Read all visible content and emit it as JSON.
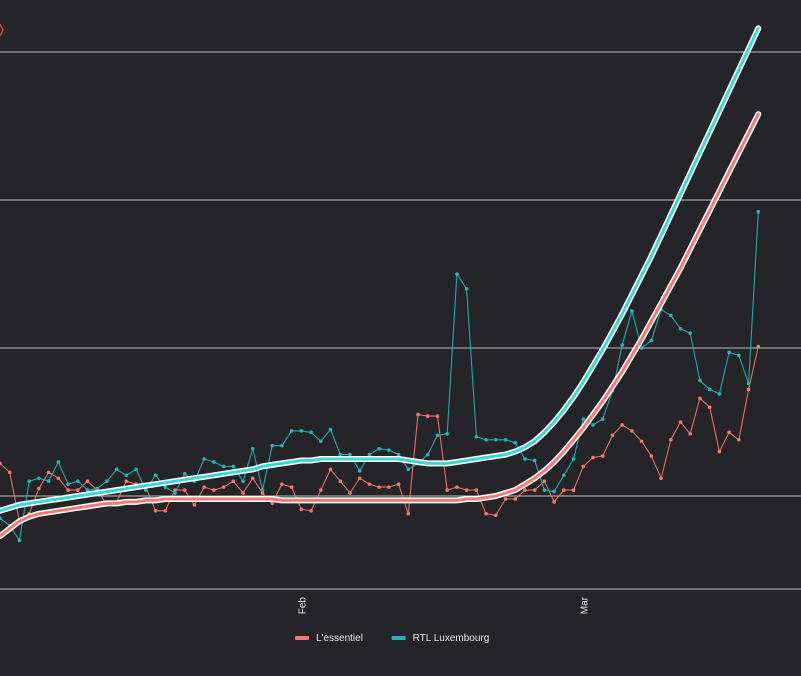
{
  "colors": {
    "background": "#252429",
    "grid": "#bdbdbd",
    "lessentiel": "#f8766d",
    "rtl": "#1fb8bd",
    "lessentiel_smooth": "#f27a74",
    "rtl_smooth": "#3fd6d8",
    "smooth_halo": "#ffffff",
    "text": "#e8e8e8",
    "marker_top_left": "#d84040"
  },
  "chart_data": {
    "type": "line",
    "x_tick_labels": [
      "Feb",
      "Mar"
    ],
    "x_tick_day_index": [
      31,
      60
    ],
    "day_range": [
      0,
      79
    ],
    "ylim": [
      -0.3,
      3.3
    ],
    "y_gridlines": [
      0,
      1,
      2,
      3
    ],
    "y_tick_labels_visible": false,
    "grid": true,
    "legend_position": "bottom",
    "series": [
      {
        "name": "L'essentiel",
        "color_key": "lessentiel",
        "values": [
          0.22,
          0.16,
          -0.17,
          -0.12,
          0.05,
          0.16,
          0.12,
          0.04,
          0.04,
          0.1,
          0.04,
          -0.06,
          -0.04,
          0.1,
          0.08,
          0.06,
          -0.1,
          -0.1,
          0.04,
          0.04,
          -0.06,
          0.06,
          0.04,
          0.06,
          0.1,
          0.02,
          0.12,
          0.02,
          -0.05,
          0.08,
          0.06,
          -0.09,
          -0.1,
          0.04,
          0.18,
          0.1,
          0.02,
          0.12,
          0.08,
          0.06,
          0.06,
          0.08,
          -0.12,
          0.55,
          0.54,
          0.54,
          0.04,
          0.06,
          0.04,
          0.04,
          -0.12,
          -0.13,
          -0.02,
          -0.02,
          0.04,
          0.04,
          0.1,
          -0.04,
          0.04,
          0.04,
          0.2,
          0.26,
          0.27,
          0.41,
          0.48,
          0.44,
          0.37,
          0.27,
          0.12,
          0.38,
          0.5,
          0.42,
          0.66,
          0.6,
          0.3,
          0.43,
          0.38,
          0.72,
          1.01
        ]
      },
      {
        "name": "RTL Luxembourg",
        "color_key": "rtl",
        "values": [
          -0.15,
          -0.2,
          -0.3,
          0.1,
          0.12,
          0.1,
          0.23,
          0.08,
          0.1,
          0.04,
          0.05,
          0.1,
          0.18,
          0.14,
          0.18,
          0.04,
          0.14,
          0.06,
          0.02,
          0.15,
          0.1,
          0.25,
          0.23,
          0.2,
          0.2,
          0.1,
          0.32,
          0.04,
          0.34,
          0.34,
          0.44,
          0.44,
          0.43,
          0.37,
          0.45,
          0.28,
          0.28,
          0.17,
          0.28,
          0.32,
          0.31,
          0.28,
          0.18,
          0.22,
          0.28,
          0.41,
          0.42,
          1.5,
          1.4,
          0.4,
          0.38,
          0.38,
          0.38,
          0.36,
          0.25,
          0.24,
          0.04,
          0.03,
          0.14,
          0.25,
          0.52,
          0.48,
          0.52,
          0.71,
          1.02,
          1.25,
          1.0,
          1.05,
          1.26,
          1.22,
          1.13,
          1.1,
          0.78,
          0.72,
          0.69,
          0.97,
          0.95,
          0.76,
          1.92
        ]
      },
      {
        "name": "L'essentiel smooth",
        "color_key": "lessentiel_smooth",
        "values": [
          -0.27,
          -0.22,
          -0.17,
          -0.14,
          -0.12,
          -0.11,
          -0.1,
          -0.09,
          -0.08,
          -0.07,
          -0.06,
          -0.05,
          -0.05,
          -0.04,
          -0.04,
          -0.03,
          -0.03,
          -0.02,
          -0.02,
          -0.02,
          -0.02,
          -0.02,
          -0.02,
          -0.02,
          -0.02,
          -0.02,
          -0.02,
          -0.02,
          -0.02,
          -0.03,
          -0.03,
          -0.03,
          -0.03,
          -0.03,
          -0.03,
          -0.03,
          -0.03,
          -0.03,
          -0.03,
          -0.03,
          -0.03,
          -0.03,
          -0.03,
          -0.03,
          -0.03,
          -0.03,
          -0.03,
          -0.03,
          -0.02,
          -0.02,
          -0.01,
          0.0,
          0.02,
          0.04,
          0.08,
          0.12,
          0.17,
          0.23,
          0.3,
          0.38,
          0.46,
          0.55,
          0.64,
          0.74,
          0.84,
          0.95,
          1.06,
          1.18,
          1.3,
          1.42,
          1.54,
          1.67,
          1.8,
          1.93,
          2.06,
          2.19,
          2.32,
          2.45,
          2.58
        ]
      },
      {
        "name": "RTL Luxembourg smooth",
        "color_key": "rtl_smooth",
        "values": [
          -0.1,
          -0.08,
          -0.06,
          -0.05,
          -0.04,
          -0.03,
          -0.02,
          -0.01,
          0.0,
          0.01,
          0.02,
          0.03,
          0.04,
          0.05,
          0.06,
          0.07,
          0.08,
          0.09,
          0.1,
          0.11,
          0.12,
          0.13,
          0.14,
          0.15,
          0.16,
          0.17,
          0.18,
          0.2,
          0.21,
          0.22,
          0.23,
          0.24,
          0.24,
          0.25,
          0.25,
          0.25,
          0.25,
          0.25,
          0.25,
          0.25,
          0.25,
          0.25,
          0.24,
          0.23,
          0.22,
          0.22,
          0.22,
          0.23,
          0.24,
          0.25,
          0.26,
          0.27,
          0.28,
          0.3,
          0.33,
          0.37,
          0.43,
          0.5,
          0.58,
          0.67,
          0.77,
          0.88,
          0.99,
          1.11,
          1.23,
          1.36,
          1.49,
          1.62,
          1.76,
          1.9,
          2.04,
          2.18,
          2.32,
          2.46,
          2.6,
          2.74,
          2.88,
          3.02,
          3.16
        ]
      }
    ],
    "legend": [
      {
        "label": "L'essentiel",
        "color_key": "lessentiel"
      },
      {
        "label": "RTL Luxembourg",
        "color_key": "rtl"
      }
    ]
  }
}
